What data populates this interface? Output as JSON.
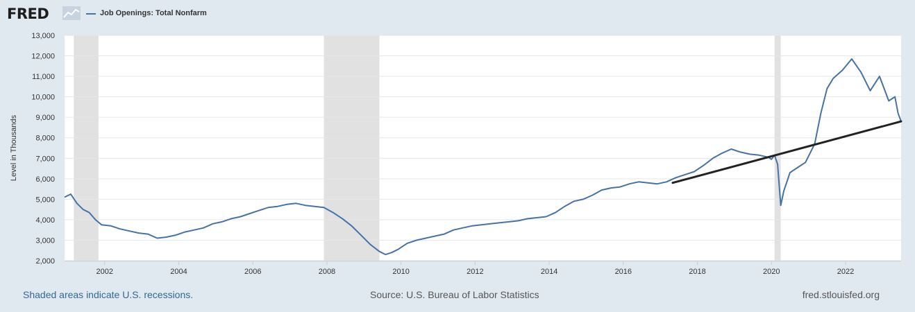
{
  "header": {
    "logo_text": "FRED",
    "logo_icon": "fred-line-chart-icon",
    "legend_label": "Job Openings: Total Nonfarm"
  },
  "footer": {
    "recession_note": "Shaded areas indicate U.S. recessions.",
    "source": "Source: U.S. Bureau of Labor Statistics",
    "site": "fred.stlouisfed.org"
  },
  "colors": {
    "page_background": "#e1e9f0",
    "plot_background": "#ffffff",
    "series_line": "#4572a7",
    "trend_line": "#222222",
    "recession_shade": "#e1e1e1",
    "gridline": "#e6e6e6"
  },
  "chart_data": {
    "type": "line",
    "ylabel": "Level in Thousands",
    "xlabel": "",
    "ylim": [
      2000,
      13000
    ],
    "xlim": [
      "2000-12",
      "2023-07"
    ],
    "yticks": [
      2000,
      3000,
      4000,
      5000,
      6000,
      7000,
      8000,
      9000,
      10000,
      11000,
      12000,
      13000
    ],
    "ytick_labels": [
      "2,000",
      "3,000",
      "4,000",
      "5,000",
      "6,000",
      "7,000",
      "8,000",
      "9,000",
      "10,000",
      "11,000",
      "12,000",
      "13,000"
    ],
    "xticks": [
      "2002",
      "2004",
      "2006",
      "2008",
      "2010",
      "2012",
      "2014",
      "2016",
      "2018",
      "2020",
      "2022"
    ],
    "grid": true,
    "legend_position": "top-left",
    "recessions": [
      {
        "start": "2001-03",
        "end": "2001-11"
      },
      {
        "start": "2007-12",
        "end": "2009-06"
      },
      {
        "start": "2020-02",
        "end": "2020-04"
      }
    ],
    "series": [
      {
        "name": "Job Openings: Total Nonfarm",
        "points": [
          [
            "2000-12",
            5100
          ],
          [
            "2001-02",
            5250
          ],
          [
            "2001-04",
            4800
          ],
          [
            "2001-06",
            4500
          ],
          [
            "2001-08",
            4350
          ],
          [
            "2001-10",
            4000
          ],
          [
            "2001-12",
            3750
          ],
          [
            "2002-03",
            3700
          ],
          [
            "2002-06",
            3550
          ],
          [
            "2002-09",
            3450
          ],
          [
            "2002-12",
            3350
          ],
          [
            "2003-03",
            3300
          ],
          [
            "2003-06",
            3100
          ],
          [
            "2003-09",
            3150
          ],
          [
            "2003-12",
            3250
          ],
          [
            "2004-03",
            3400
          ],
          [
            "2004-06",
            3500
          ],
          [
            "2004-09",
            3600
          ],
          [
            "2004-12",
            3800
          ],
          [
            "2005-03",
            3900
          ],
          [
            "2005-06",
            4050
          ],
          [
            "2005-09",
            4150
          ],
          [
            "2005-12",
            4300
          ],
          [
            "2006-03",
            4450
          ],
          [
            "2006-06",
            4600
          ],
          [
            "2006-09",
            4650
          ],
          [
            "2006-12",
            4750
          ],
          [
            "2007-03",
            4800
          ],
          [
            "2007-06",
            4700
          ],
          [
            "2007-09",
            4650
          ],
          [
            "2007-12",
            4600
          ],
          [
            "2008-03",
            4350
          ],
          [
            "2008-06",
            4050
          ],
          [
            "2008-09",
            3700
          ],
          [
            "2008-12",
            3250
          ],
          [
            "2009-03",
            2800
          ],
          [
            "2009-06",
            2450
          ],
          [
            "2009-08",
            2300
          ],
          [
            "2009-10",
            2400
          ],
          [
            "2009-12",
            2550
          ],
          [
            "2010-03",
            2850
          ],
          [
            "2010-06",
            3000
          ],
          [
            "2010-09",
            3100
          ],
          [
            "2010-12",
            3200
          ],
          [
            "2011-03",
            3300
          ],
          [
            "2011-06",
            3500
          ],
          [
            "2011-09",
            3600
          ],
          [
            "2011-12",
            3700
          ],
          [
            "2012-03",
            3750
          ],
          [
            "2012-06",
            3800
          ],
          [
            "2012-09",
            3850
          ],
          [
            "2012-12",
            3900
          ],
          [
            "2013-03",
            3950
          ],
          [
            "2013-06",
            4050
          ],
          [
            "2013-09",
            4100
          ],
          [
            "2013-12",
            4150
          ],
          [
            "2014-03",
            4350
          ],
          [
            "2014-06",
            4650
          ],
          [
            "2014-09",
            4900
          ],
          [
            "2014-12",
            5000
          ],
          [
            "2015-03",
            5200
          ],
          [
            "2015-06",
            5450
          ],
          [
            "2015-09",
            5550
          ],
          [
            "2015-12",
            5600
          ],
          [
            "2016-03",
            5750
          ],
          [
            "2016-06",
            5850
          ],
          [
            "2016-09",
            5800
          ],
          [
            "2016-12",
            5750
          ],
          [
            "2017-03",
            5850
          ],
          [
            "2017-06",
            6050
          ],
          [
            "2017-09",
            6200
          ],
          [
            "2017-12",
            6350
          ],
          [
            "2018-03",
            6650
          ],
          [
            "2018-06",
            7000
          ],
          [
            "2018-09",
            7250
          ],
          [
            "2018-12",
            7450
          ],
          [
            "2019-03",
            7300
          ],
          [
            "2019-06",
            7200
          ],
          [
            "2019-09",
            7150
          ],
          [
            "2019-12",
            7050
          ],
          [
            "2020-01",
            6950
          ],
          [
            "2020-02",
            7150
          ],
          [
            "2020-03",
            6700
          ],
          [
            "2020-04",
            4700
          ],
          [
            "2020-05",
            5400
          ],
          [
            "2020-07",
            6300
          ],
          [
            "2020-09",
            6500
          ],
          [
            "2020-12",
            6800
          ],
          [
            "2021-03",
            7700
          ],
          [
            "2021-05",
            9200
          ],
          [
            "2021-07",
            10400
          ],
          [
            "2021-09",
            10900
          ],
          [
            "2021-12",
            11300
          ],
          [
            "2022-03",
            11850
          ],
          [
            "2022-06",
            11200
          ],
          [
            "2022-09",
            10300
          ],
          [
            "2022-12",
            11000
          ],
          [
            "2023-03",
            9800
          ],
          [
            "2023-05",
            10000
          ],
          [
            "2023-06",
            9200
          ],
          [
            "2023-07",
            8800
          ]
        ]
      }
    ],
    "annotations": [
      {
        "type": "trend-line",
        "from": [
          "2017-05",
          5800
        ],
        "to": [
          "2023-07",
          8800
        ]
      }
    ]
  }
}
